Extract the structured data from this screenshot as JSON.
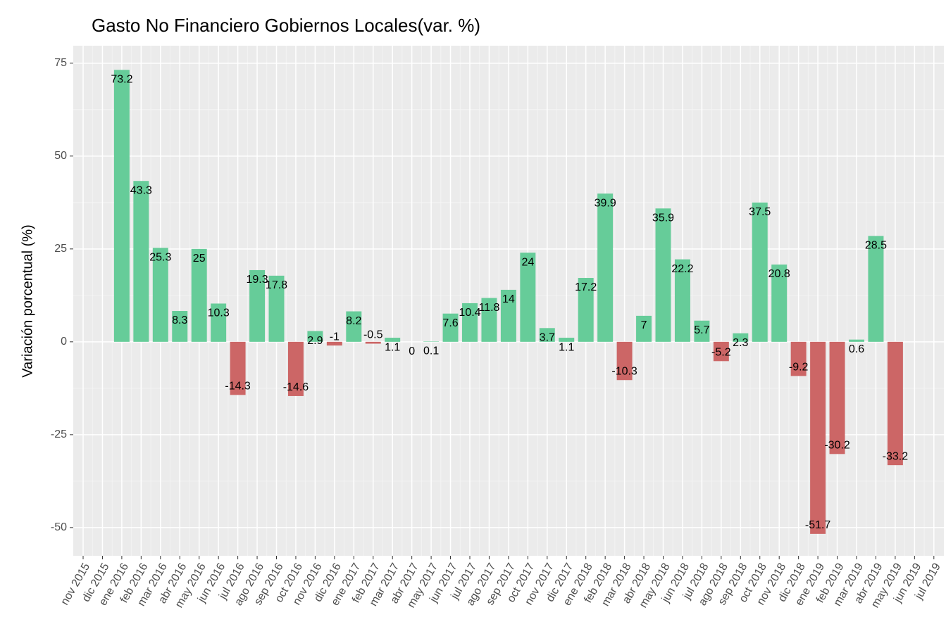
{
  "chart_data": {
    "type": "bar",
    "title": "Gasto No Financiero Gobiernos Locales(var. %)",
    "y_label": "Variación porcentual (%)",
    "categories": [
      "nov 2015",
      "dic 2015",
      "ene 2016",
      "feb 2016",
      "mar 2016",
      "abr 2016",
      "may 2016",
      "jun 2016",
      "jul 2016",
      "ago 2016",
      "sep 2016",
      "oct 2016",
      "nov 2016",
      "dic 2016",
      "ene 2017",
      "feb 2017",
      "mar 2017",
      "abr 2017",
      "may 2017",
      "jun 2017",
      "jul 2017",
      "ago 2017",
      "sep 2017",
      "oct 2017",
      "nov 2017",
      "dic 2017",
      "ene 2018",
      "feb 2018",
      "mar 2018",
      "abr 2018",
      "may 2018",
      "jun 2018",
      "jul 2018",
      "ago 2018",
      "sep 2018",
      "oct 2018",
      "nov 2018",
      "dic 2018",
      "ene 2019",
      "feb 2019",
      "mar 2019",
      "abr 2019",
      "may 2019",
      "jun 2019",
      "jul 2019"
    ],
    "values": [
      null,
      null,
      73.2,
      43.3,
      25.3,
      8.3,
      25,
      10.3,
      -14.3,
      19.3,
      17.8,
      -14.6,
      2.9,
      -1,
      8.2,
      -0.5,
      1.1,
      0,
      0.1,
      7.6,
      10.4,
      11.8,
      14,
      24,
      3.7,
      1.1,
      17.2,
      39.9,
      -10.3,
      7,
      35.9,
      22.2,
      5.7,
      -5.2,
      2.3,
      37.5,
      20.8,
      -9.2,
      -51.7,
      -30.2,
      0.6,
      28.5,
      -33.2,
      null,
      null
    ],
    "positive_color": "#66cc99",
    "negative_color": "#cc6666",
    "ylim": [
      -57.6,
      79.7
    ],
    "yticks": [
      -50,
      -25,
      0,
      25,
      50,
      75
    ],
    "grid": true
  }
}
